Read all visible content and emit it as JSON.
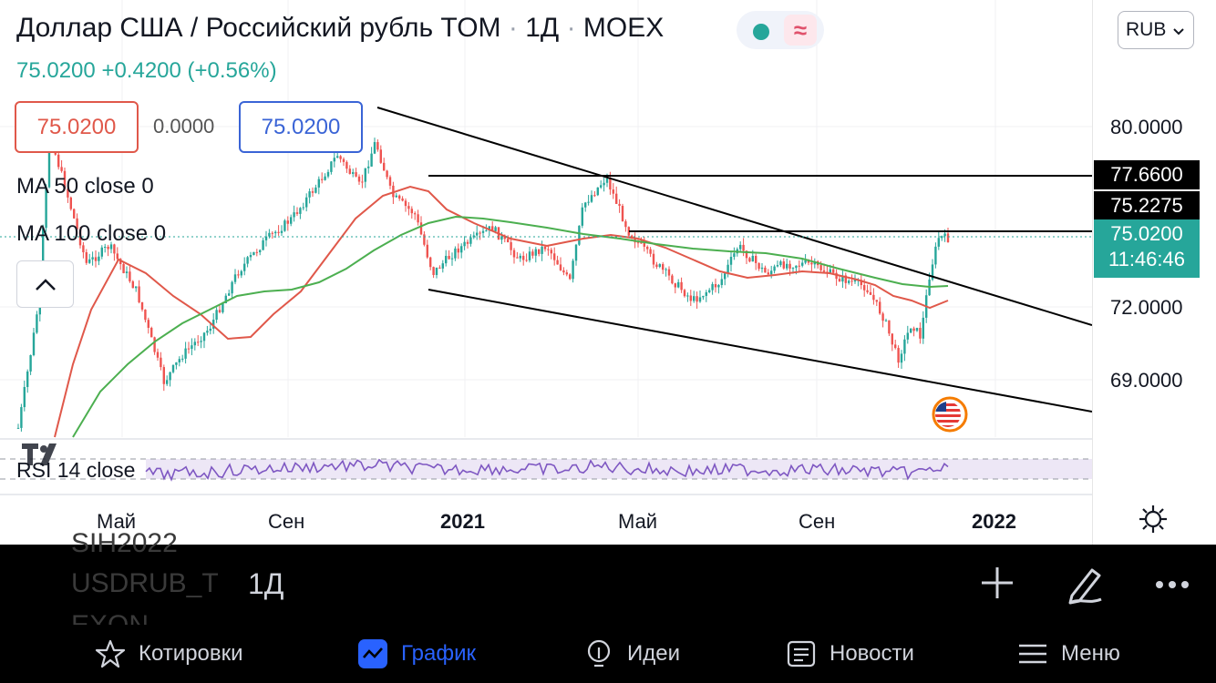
{
  "header": {
    "instrument": "Доллар США / Российский рубль TOM",
    "interval": "1Д",
    "exchange": "MOEX",
    "last_price": "75.0200",
    "change": "+0.4200",
    "change_pct": "(+0.56%)",
    "sell_price": "75.0200",
    "spread": "0.0000",
    "buy_price": "75.0200",
    "wave_icon": "≈"
  },
  "indicators": {
    "ma50": "MA 50 close 0",
    "ma100": "MA 100 close 0",
    "rsi": "RSI 14 close",
    "collapse_icon": "^"
  },
  "currency_select": {
    "value": "RUB"
  },
  "price_scale": {
    "p80": "80.0000",
    "p72": "72.0000",
    "p69": "69.0000",
    "tag_resistance": "77.6600",
    "tag_level": "75.2275",
    "tag_last": "75.0200",
    "tag_time": "11:46:46"
  },
  "time_axis": [
    "Май",
    "Сен",
    "2021",
    "Май",
    "Сен",
    "2022"
  ],
  "bottom_sheet": {
    "ghost_1": "SIH2022",
    "ghost_2": "USDRUB_T",
    "ghost_3": "EXON",
    "period": "1Д"
  },
  "tabbar": {
    "quotes": "Котировки",
    "chart": "График",
    "ideas": "Идеи",
    "news": "Новости",
    "menu": "Меню"
  },
  "colors": {
    "up": "#26a69a",
    "down": "#ef5350",
    "ma50": "#e0584a",
    "ma100": "#4caf50",
    "rsi": "#7e57c2",
    "accent": "#2962ff"
  }
}
